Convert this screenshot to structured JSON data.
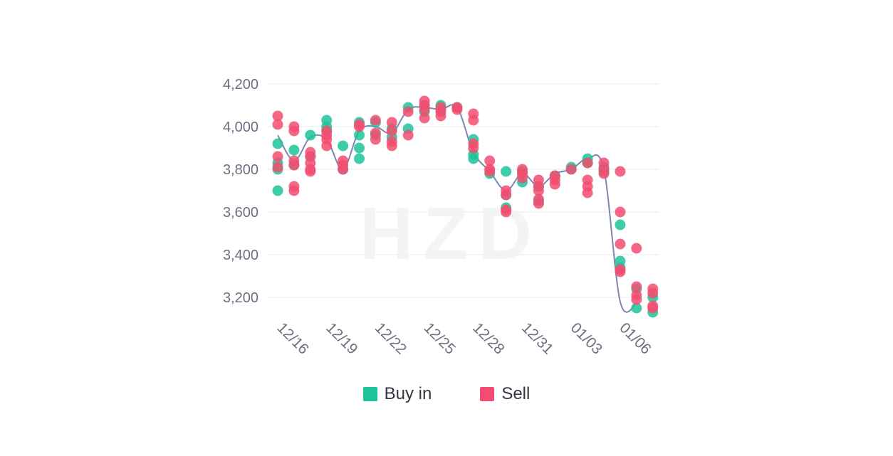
{
  "watermark": "HZD",
  "colors": {
    "buy": "#1dc39a",
    "sell": "#f24d71",
    "line": "#7f86b4",
    "grid": "#f0f1f4"
  },
  "chart_data": {
    "type": "scatter",
    "ylim": [
      3100,
      4200
    ],
    "yticks": [
      3200,
      3400,
      3600,
      3800,
      4000,
      4200
    ],
    "ytick_labels": [
      "3,200",
      "3,400",
      "3,600",
      "3,800",
      "4,000",
      "4,200"
    ],
    "x_labels": [
      "12/16",
      "12/19",
      "12/22",
      "12/25",
      "12/28",
      "12/31",
      "01/03",
      "01/06"
    ],
    "dates": [
      "12/16",
      "12/17",
      "12/18",
      "12/19",
      "12/20",
      "12/21",
      "12/22",
      "12/23",
      "12/24",
      "12/25",
      "12/26",
      "12/27",
      "12/28",
      "12/29",
      "12/30",
      "12/31",
      "01/01",
      "01/02",
      "01/03",
      "01/04",
      "01/05",
      "01/06",
      "01/07"
    ],
    "trend": [
      3960,
      3840,
      3950,
      3940,
      3800,
      3980,
      4000,
      3970,
      4080,
      4090,
      4080,
      4090,
      3880,
      3790,
      3700,
      3780,
      3720,
      3780,
      3800,
      3850,
      3800,
      3180,
      3170
    ],
    "legend": [
      "Buy in",
      "Sell"
    ],
    "series": [
      {
        "name": "Buy in",
        "points": [
          [
            "12/16",
            3920
          ],
          [
            "12/16",
            3830
          ],
          [
            "12/16",
            3800
          ],
          [
            "12/16",
            3700
          ],
          [
            "12/17",
            3890
          ],
          [
            "12/17",
            3820
          ],
          [
            "12/18",
            3960
          ],
          [
            "12/18",
            3860
          ],
          [
            "12/19",
            4030
          ],
          [
            "12/19",
            4000
          ],
          [
            "12/19",
            3980
          ],
          [
            "12/20",
            3910
          ],
          [
            "12/20",
            3800
          ],
          [
            "12/21",
            4020
          ],
          [
            "12/21",
            3960
          ],
          [
            "12/21",
            3900
          ],
          [
            "12/21",
            3850
          ],
          [
            "12/22",
            4020
          ],
          [
            "12/22",
            3960
          ],
          [
            "12/23",
            3990
          ],
          [
            "12/23",
            3950
          ],
          [
            "12/24",
            4090
          ],
          [
            "12/24",
            3990
          ],
          [
            "12/25",
            4100
          ],
          [
            "12/25",
            4070
          ],
          [
            "12/26",
            4100
          ],
          [
            "12/26",
            4080
          ],
          [
            "12/27",
            4090
          ],
          [
            "12/28",
            3940
          ],
          [
            "12/28",
            3870
          ],
          [
            "12/28",
            3850
          ],
          [
            "12/29",
            3780
          ],
          [
            "12/30",
            3790
          ],
          [
            "12/30",
            3620
          ],
          [
            "12/30",
            3680
          ],
          [
            "12/31",
            3790
          ],
          [
            "12/31",
            3740
          ],
          [
            "01/01",
            3720
          ],
          [
            "01/01",
            3650
          ],
          [
            "01/02",
            3770
          ],
          [
            "01/03",
            3810
          ],
          [
            "01/03",
            3800
          ],
          [
            "01/04",
            3850
          ],
          [
            "01/04",
            3830
          ],
          [
            "01/05",
            3810
          ],
          [
            "01/05",
            3790
          ],
          [
            "01/06",
            3540
          ],
          [
            "01/06",
            3370
          ],
          [
            "01/06",
            3340
          ],
          [
            "01/07",
            3150
          ],
          [
            "01/07",
            3240
          ],
          [
            "01/08",
            3130
          ],
          [
            "01/08",
            3200
          ]
        ]
      },
      {
        "name": "Sell",
        "points": [
          [
            "12/16",
            4050
          ],
          [
            "12/16",
            4010
          ],
          [
            "12/16",
            3860
          ],
          [
            "12/16",
            3810
          ],
          [
            "12/17",
            4000
          ],
          [
            "12/17",
            3980
          ],
          [
            "12/17",
            3840
          ],
          [
            "12/17",
            3820
          ],
          [
            "12/17",
            3720
          ],
          [
            "12/17",
            3700
          ],
          [
            "12/18",
            3880
          ],
          [
            "12/18",
            3860
          ],
          [
            "12/18",
            3830
          ],
          [
            "12/18",
            3800
          ],
          [
            "12/18",
            3790
          ],
          [
            "12/19",
            3980
          ],
          [
            "12/19",
            3960
          ],
          [
            "12/19",
            3940
          ],
          [
            "12/19",
            3910
          ],
          [
            "12/20",
            3840
          ],
          [
            "12/20",
            3820
          ],
          [
            "12/20",
            3800
          ],
          [
            "12/21",
            4010
          ],
          [
            "12/21",
            4000
          ],
          [
            "12/22",
            4030
          ],
          [
            "12/22",
            3970
          ],
          [
            "12/22",
            3940
          ],
          [
            "12/23",
            4020
          ],
          [
            "12/23",
            3980
          ],
          [
            "12/23",
            3930
          ],
          [
            "12/23",
            3910
          ],
          [
            "12/24",
            4070
          ],
          [
            "12/24",
            3960
          ],
          [
            "12/25",
            4120
          ],
          [
            "12/25",
            4100
          ],
          [
            "12/25",
            4080
          ],
          [
            "12/25",
            4040
          ],
          [
            "12/26",
            4090
          ],
          [
            "12/26",
            4070
          ],
          [
            "12/26",
            4050
          ],
          [
            "12/27",
            4090
          ],
          [
            "12/27",
            4080
          ],
          [
            "12/28",
            4060
          ],
          [
            "12/28",
            4030
          ],
          [
            "12/28",
            3920
          ],
          [
            "12/28",
            3900
          ],
          [
            "12/29",
            3840
          ],
          [
            "12/29",
            3800
          ],
          [
            "12/29",
            3790
          ],
          [
            "12/30",
            3700
          ],
          [
            "12/30",
            3680
          ],
          [
            "12/30",
            3610
          ],
          [
            "12/30",
            3600
          ],
          [
            "12/31",
            3800
          ],
          [
            "12/31",
            3780
          ],
          [
            "12/31",
            3760
          ],
          [
            "01/01",
            3750
          ],
          [
            "01/01",
            3720
          ],
          [
            "01/01",
            3700
          ],
          [
            "01/01",
            3660
          ],
          [
            "01/01",
            3640
          ],
          [
            "01/02",
            3770
          ],
          [
            "01/02",
            3750
          ],
          [
            "01/02",
            3730
          ],
          [
            "01/03",
            3800
          ],
          [
            "01/04",
            3830
          ],
          [
            "01/04",
            3750
          ],
          [
            "01/04",
            3720
          ],
          [
            "01/04",
            3690
          ],
          [
            "01/05",
            3830
          ],
          [
            "01/05",
            3800
          ],
          [
            "01/05",
            3780
          ],
          [
            "01/06",
            3790
          ],
          [
            "01/06",
            3600
          ],
          [
            "01/06",
            3450
          ],
          [
            "01/06",
            3330
          ],
          [
            "01/06",
            3320
          ],
          [
            "01/07",
            3430
          ],
          [
            "01/07",
            3250
          ],
          [
            "01/07",
            3210
          ],
          [
            "01/07",
            3190
          ],
          [
            "01/08",
            3240
          ],
          [
            "01/08",
            3220
          ],
          [
            "01/08",
            3160
          ],
          [
            "01/08",
            3150
          ]
        ]
      }
    ]
  }
}
